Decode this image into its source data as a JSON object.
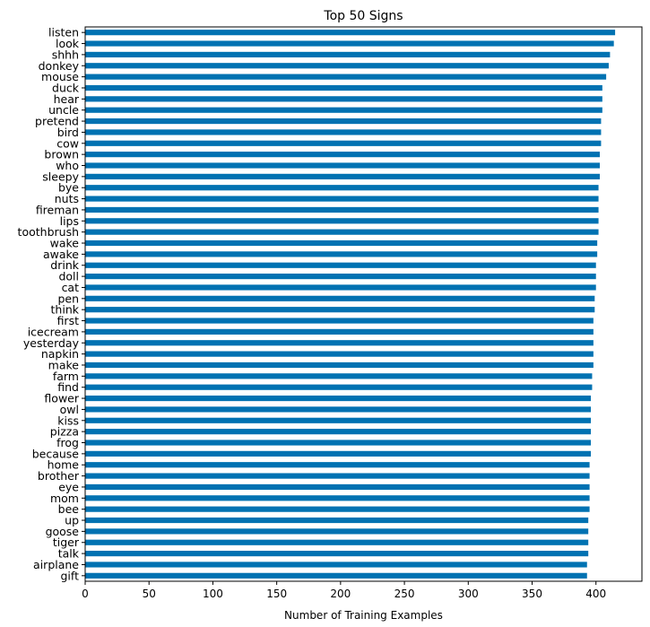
{
  "chart_data": {
    "type": "bar",
    "orientation": "horizontal",
    "title": "Top 50 Signs",
    "xlabel": "Number of Training Examples",
    "ylabel": "",
    "xlim": [
      0,
      436
    ],
    "xticks": [
      0,
      50,
      100,
      150,
      200,
      250,
      300,
      350,
      400
    ],
    "grid": false,
    "bar_color": "#0072B2",
    "categories": [
      "listen",
      "look",
      "shhh",
      "donkey",
      "mouse",
      "duck",
      "hear",
      "uncle",
      "pretend",
      "bird",
      "cow",
      "brown",
      "who",
      "sleepy",
      "bye",
      "nuts",
      "fireman",
      "lips",
      "toothbrush",
      "wake",
      "awake",
      "drink",
      "doll",
      "cat",
      "pen",
      "think",
      "first",
      "icecream",
      "yesterday",
      "napkin",
      "make",
      "farm",
      "find",
      "flower",
      "owl",
      "kiss",
      "pizza",
      "frog",
      "because",
      "home",
      "brother",
      "eye",
      "mom",
      "bee",
      "up",
      "goose",
      "tiger",
      "talk",
      "airplane",
      "gift"
    ],
    "values": [
      415,
      414,
      411,
      410,
      408,
      405,
      405,
      405,
      404,
      404,
      404,
      403,
      403,
      403,
      402,
      402,
      402,
      402,
      402,
      401,
      401,
      400,
      400,
      400,
      399,
      399,
      398,
      398,
      398,
      398,
      398,
      397,
      397,
      396,
      396,
      396,
      396,
      396,
      396,
      395,
      395,
      395,
      395,
      395,
      394,
      394,
      394,
      394,
      393,
      393
    ]
  }
}
